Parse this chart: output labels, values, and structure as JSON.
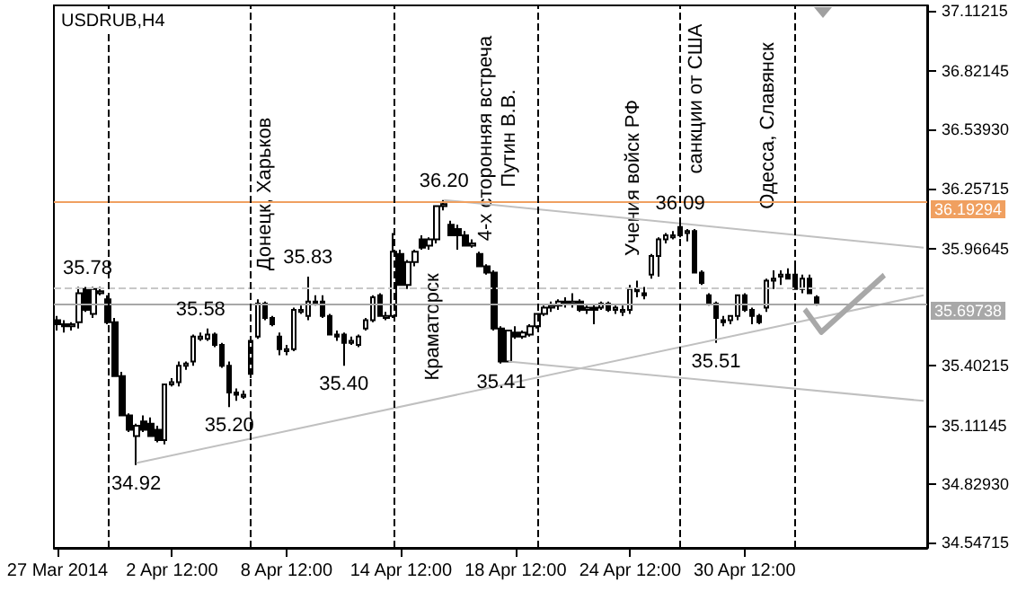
{
  "chart_data": {
    "type": "candlestick",
    "title": "USDRUB,H4",
    "categories": [
      "27 Mar 2014",
      null,
      null,
      null,
      null,
      null,
      null,
      null,
      null,
      null,
      null,
      null,
      null,
      null,
      null,
      null,
      "2 Apr 12:00",
      null,
      null,
      null,
      null,
      null,
      null,
      null,
      null,
      null,
      null,
      null,
      null,
      null,
      null,
      null,
      "8 Apr 12:00",
      null,
      null,
      null,
      null,
      null,
      null,
      null,
      null,
      null,
      null,
      null,
      null,
      null,
      null,
      null,
      "14 Apr 12:00",
      null,
      null,
      null,
      null,
      null,
      null,
      null,
      null,
      null,
      null,
      null,
      null,
      null,
      null,
      null,
      "18 Apr 12:00",
      null,
      null,
      null,
      null,
      null,
      null,
      null,
      null,
      null,
      null,
      null,
      null,
      null,
      null,
      null,
      "24 Apr 12:00",
      null,
      null,
      null,
      null,
      null,
      null,
      null,
      null,
      null,
      null,
      null,
      null,
      null,
      null,
      null,
      "30 Apr 12:00",
      null,
      null,
      null,
      null,
      null,
      null,
      null,
      null,
      null,
      null,
      null,
      null,
      null,
      null,
      null,
      null,
      null,
      null,
      null,
      null,
      null,
      null,
      null,
      null,
      null
    ],
    "series": [
      {
        "color": "#000000",
        "ohlc": [
          [
            35.62,
            35.64,
            35.57,
            35.6
          ],
          [
            35.6,
            35.62,
            35.56,
            35.59
          ],
          [
            35.59,
            35.61,
            35.57,
            35.6
          ],
          [
            35.61,
            35.78,
            35.58,
            35.75
          ],
          [
            35.77,
            35.78,
            35.66,
            35.67
          ],
          [
            35.65,
            35.78,
            35.63,
            35.77
          ],
          [
            35.75,
            35.78,
            35.74,
            35.76
          ],
          [
            35.72,
            35.74,
            35.6,
            35.61
          ],
          [
            35.61,
            35.63,
            35.35,
            35.35
          ],
          [
            35.35,
            35.37,
            35.16,
            35.16
          ],
          [
            35.16,
            35.17,
            35.08,
            35.09
          ],
          [
            35.06,
            35.12,
            34.92,
            35.11
          ],
          [
            35.13,
            35.16,
            35.08,
            35.09
          ],
          [
            35.12,
            35.15,
            35.06,
            35.06
          ],
          [
            35.09,
            35.11,
            35.03,
            35.04
          ],
          [
            35.04,
            35.31,
            35.02,
            35.31
          ],
          [
            35.31,
            35.34,
            35.3,
            35.32
          ],
          [
            35.32,
            35.42,
            35.3,
            35.4
          ],
          [
            35.4,
            35.42,
            35.38,
            35.41
          ],
          [
            35.42,
            35.55,
            35.4,
            35.54
          ],
          [
            35.53,
            35.56,
            35.52,
            35.54
          ],
          [
            35.53,
            35.58,
            35.52,
            35.55
          ],
          [
            35.55,
            35.56,
            35.49,
            35.5
          ],
          [
            35.5,
            35.51,
            35.39,
            35.4
          ],
          [
            35.4,
            35.42,
            35.2,
            35.27
          ],
          [
            35.27,
            35.29,
            35.23,
            35.26
          ],
          [
            35.25,
            35.28,
            35.24,
            35.26
          ],
          [
            35.36,
            35.54,
            35.34,
            35.52
          ],
          [
            35.54,
            35.72,
            35.53,
            35.7
          ],
          [
            35.7,
            35.71,
            35.62,
            35.63
          ],
          [
            35.63,
            35.64,
            35.59,
            35.6
          ],
          [
            35.54,
            35.56,
            35.45,
            35.48
          ],
          [
            35.47,
            35.5,
            35.45,
            35.48
          ],
          [
            35.48,
            35.68,
            35.47,
            35.67
          ],
          [
            35.66,
            35.69,
            35.65,
            35.67
          ],
          [
            35.64,
            35.83,
            35.62,
            35.71
          ],
          [
            35.71,
            35.74,
            35.69,
            35.7
          ],
          [
            35.71,
            35.74,
            35.63,
            35.64
          ],
          [
            35.64,
            35.65,
            35.55,
            35.55
          ],
          [
            35.55,
            35.57,
            35.52,
            35.54
          ],
          [
            35.55,
            35.56,
            35.4,
            35.51
          ],
          [
            35.51,
            35.54,
            35.5,
            35.52
          ],
          [
            35.5,
            35.55,
            35.49,
            35.54
          ],
          [
            35.58,
            35.63,
            35.57,
            35.62
          ],
          [
            35.62,
            35.74,
            35.61,
            35.73
          ],
          [
            35.74,
            35.75,
            35.64,
            35.64
          ],
          [
            35.63,
            35.66,
            35.62,
            35.64
          ],
          [
            35.64,
            36.04,
            35.63,
            35.95
          ],
          [
            35.94,
            35.96,
            35.79,
            35.79
          ],
          [
            35.79,
            35.91,
            35.77,
            35.9
          ],
          [
            35.9,
            35.96,
            35.88,
            35.95
          ],
          [
            36.01,
            36.03,
            35.96,
            35.97
          ],
          [
            35.98,
            36.02,
            35.96,
            36.01
          ],
          [
            36.01,
            36.17,
            35.99,
            36.17
          ],
          [
            36.17,
            36.2,
            36.15,
            36.18
          ],
          [
            36.08,
            36.1,
            36.03,
            36.03
          ],
          [
            36.06,
            36.08,
            35.96,
            36.03
          ],
          [
            36.03,
            36.05,
            35.98,
            35.98
          ],
          [
            35.98,
            36.01,
            35.97,
            35.99
          ],
          [
            35.94,
            35.95,
            35.88,
            35.88
          ],
          [
            35.88,
            35.89,
            35.84,
            35.85
          ],
          [
            35.85,
            35.86,
            35.57,
            35.58
          ],
          [
            35.58,
            35.59,
            35.41,
            35.42
          ],
          [
            35.42,
            35.57,
            35.42,
            35.57
          ],
          [
            35.56,
            35.59,
            35.53,
            35.54
          ],
          [
            35.54,
            35.57,
            35.53,
            35.56
          ],
          [
            35.55,
            35.6,
            35.54,
            35.59
          ],
          [
            35.59,
            35.65,
            35.58,
            35.65
          ],
          [
            35.65,
            35.69,
            35.64,
            35.68
          ],
          [
            35.68,
            35.71,
            35.66,
            35.69
          ],
          [
            35.69,
            35.72,
            35.67,
            35.71
          ],
          [
            35.71,
            35.73,
            35.68,
            35.7
          ],
          [
            35.7,
            35.75,
            35.68,
            35.71
          ],
          [
            35.71,
            35.72,
            35.66,
            35.67
          ],
          [
            35.67,
            35.69,
            35.65,
            35.68
          ],
          [
            35.68,
            35.7,
            35.6,
            35.67
          ],
          [
            35.68,
            35.71,
            35.67,
            35.7
          ],
          [
            35.7,
            35.71,
            35.66,
            35.67
          ],
          [
            35.67,
            35.69,
            35.65,
            35.68
          ],
          [
            35.66,
            35.69,
            35.64,
            35.67
          ],
          [
            35.67,
            35.79,
            35.65,
            35.77
          ],
          [
            35.77,
            35.81,
            35.73,
            35.76
          ],
          [
            35.75,
            35.78,
            35.72,
            35.74
          ],
          [
            35.84,
            35.94,
            35.82,
            35.93
          ],
          [
            35.93,
            36.02,
            35.83,
            36.01
          ],
          [
            36.01,
            36.04,
            35.99,
            36.03
          ],
          [
            36.02,
            36.05,
            36.01,
            36.03
          ],
          [
            36.07,
            36.09,
            36.02,
            36.03
          ],
          [
            36.04,
            36.06,
            36.0,
            36.05
          ],
          [
            36.05,
            36.06,
            35.85,
            35.85
          ],
          [
            35.85,
            35.86,
            35.79,
            35.8
          ],
          [
            35.74,
            35.75,
            35.69,
            35.7
          ],
          [
            35.7,
            35.71,
            35.51,
            35.63
          ],
          [
            35.62,
            35.64,
            35.59,
            35.61
          ],
          [
            35.62,
            35.64,
            35.6,
            35.64
          ],
          [
            35.64,
            35.74,
            35.62,
            35.74
          ],
          [
            35.74,
            35.75,
            35.66,
            35.67
          ],
          [
            35.67,
            35.68,
            35.6,
            35.64
          ],
          [
            35.64,
            35.65,
            35.6,
            35.61
          ],
          [
            35.68,
            35.82,
            35.66,
            35.81
          ],
          [
            35.81,
            35.86,
            35.77,
            35.82
          ],
          [
            35.83,
            35.86,
            35.79,
            35.84
          ],
          [
            35.84,
            35.87,
            35.82,
            35.82
          ],
          [
            35.84,
            35.88,
            35.77,
            35.77
          ],
          [
            35.77,
            35.84,
            35.75,
            35.82
          ],
          [
            35.82,
            35.84,
            35.75,
            35.75
          ],
          [
            35.73,
            35.74,
            35.69,
            35.7
          ],
          null,
          null,
          null,
          null,
          null,
          null,
          null,
          null,
          null,
          null,
          null,
          null,
          null,
          null,
          null
        ]
      },
      {
        "type": "line",
        "color": "#c0c0c0",
        "values": [
          null,
          null,
          null,
          null,
          null,
          null,
          null,
          null,
          null,
          null,
          null,
          34.93,
          null,
          null,
          null,
          null,
          null,
          null,
          null,
          null,
          null,
          null,
          null,
          null,
          null,
          null,
          null,
          null,
          null,
          null,
          null,
          null,
          null,
          null,
          null,
          null,
          null,
          null,
          null,
          null,
          null,
          null,
          null,
          null,
          null,
          null,
          null,
          null,
          null,
          null,
          null,
          null,
          null,
          null,
          null,
          null,
          null,
          null,
          null,
          null,
          null,
          null,
          null,
          null,
          null,
          null,
          null,
          null,
          null,
          null,
          null,
          null,
          null,
          null,
          null,
          null,
          null,
          null,
          null,
          null,
          null,
          null,
          null,
          null,
          null,
          null,
          null,
          null,
          null,
          null,
          null,
          null,
          null,
          null,
          null,
          null,
          null,
          null,
          null,
          null,
          null,
          null,
          null,
          null,
          null,
          null,
          null,
          null,
          null,
          null,
          null,
          null,
          null,
          null,
          null,
          null,
          null,
          null,
          null,
          null,
          null,
          35.74
        ]
      },
      {
        "type": "line",
        "color": "#c0c0c0",
        "values": [
          null,
          null,
          null,
          null,
          null,
          null,
          null,
          null,
          null,
          null,
          null,
          null,
          null,
          null,
          null,
          null,
          null,
          null,
          null,
          null,
          null,
          null,
          null,
          null,
          null,
          null,
          null,
          null,
          null,
          null,
          null,
          null,
          null,
          null,
          null,
          null,
          null,
          null,
          null,
          null,
          null,
          null,
          null,
          null,
          null,
          null,
          null,
          null,
          null,
          null,
          null,
          null,
          null,
          null,
          36.2,
          null,
          null,
          null,
          null,
          null,
          null,
          null,
          null,
          null,
          null,
          null,
          null,
          null,
          null,
          null,
          null,
          null,
          null,
          null,
          null,
          null,
          null,
          null,
          null,
          null,
          null,
          null,
          null,
          null,
          null,
          null,
          null,
          null,
          null,
          null,
          null,
          null,
          null,
          null,
          null,
          null,
          null,
          null,
          null,
          null,
          null,
          null,
          null,
          null,
          null,
          null,
          null,
          null,
          null,
          null,
          null,
          null,
          null,
          null,
          null,
          null,
          null,
          null,
          null,
          null,
          null,
          35.97
        ]
      },
      {
        "type": "line",
        "color": "#c0c0c0",
        "values": [
          null,
          null,
          null,
          null,
          null,
          null,
          null,
          null,
          null,
          null,
          null,
          null,
          null,
          null,
          null,
          null,
          null,
          null,
          null,
          null,
          null,
          null,
          null,
          null,
          null,
          null,
          null,
          null,
          null,
          null,
          null,
          null,
          null,
          null,
          null,
          null,
          null,
          null,
          null,
          null,
          null,
          null,
          null,
          null,
          null,
          null,
          null,
          null,
          null,
          null,
          null,
          null,
          null,
          null,
          null,
          null,
          null,
          null,
          null,
          null,
          null,
          null,
          null,
          35.42,
          null,
          null,
          null,
          null,
          null,
          null,
          null,
          null,
          null,
          null,
          null,
          null,
          null,
          null,
          null,
          null,
          null,
          null,
          null,
          null,
          null,
          null,
          null,
          null,
          null,
          null,
          null,
          null,
          null,
          null,
          null,
          null,
          null,
          null,
          null,
          null,
          null,
          null,
          null,
          null,
          null,
          null,
          null,
          null,
          null,
          null,
          null,
          null,
          null,
          null,
          null,
          null,
          null,
          null,
          null,
          null,
          null,
          35.23
        ]
      }
    ],
    "ylim": [
      34.52,
      37.14
    ],
    "yticks": [
      {
        "value": 34.54715,
        "label": "34.54715"
      },
      {
        "value": 34.8293,
        "label": "34.82930"
      },
      {
        "value": 35.11145,
        "label": "35.11145"
      },
      {
        "value": 35.40215,
        "label": "35.40215"
      },
      {
        "value": 35.96645,
        "label": "35.96645"
      },
      {
        "value": 36.25715,
        "label": "36.25715"
      },
      {
        "value": 36.5393,
        "label": "36.53930"
      },
      {
        "value": 36.82145,
        "label": "36.82145"
      },
      {
        "value": 37.11215,
        "label": "37.11215"
      }
    ],
    "ref_lines": [
      {
        "axis": "y",
        "value": 36.19294,
        "label": "36.19294",
        "color": "#f0a060"
      },
      {
        "axis": "y",
        "value": 35.69738,
        "label": "35.69738",
        "color": "#a8a8a8"
      },
      {
        "axis": "y",
        "value": 35.78,
        "label": "35.78",
        "color": "#c8c8c8",
        "line_style": "dashed"
      }
    ],
    "annotations": [
      {
        "text": "35.58",
        "y": 35.58
      },
      {
        "text": "35.83",
        "y": 35.83
      },
      {
        "text": "35.40",
        "y": 35.4
      },
      {
        "text": "35.20",
        "y": 35.2
      },
      {
        "text": "34.92",
        "y": 34.92
      },
      {
        "text": "36.20",
        "y": 36.2
      },
      {
        "text": "35.41",
        "y": 35.41
      },
      {
        "text": "36.09",
        "y": 36.09
      },
      {
        "text": "35.51",
        "y": 35.51
      },
      "Донецк, Харьков",
      "Краматорск",
      "4-х сторонняя встреча\nПутин В.В.",
      "Учения войск РФ",
      "санкции от США",
      "Одесса, Славянск"
    ],
    "grid": false
  }
}
